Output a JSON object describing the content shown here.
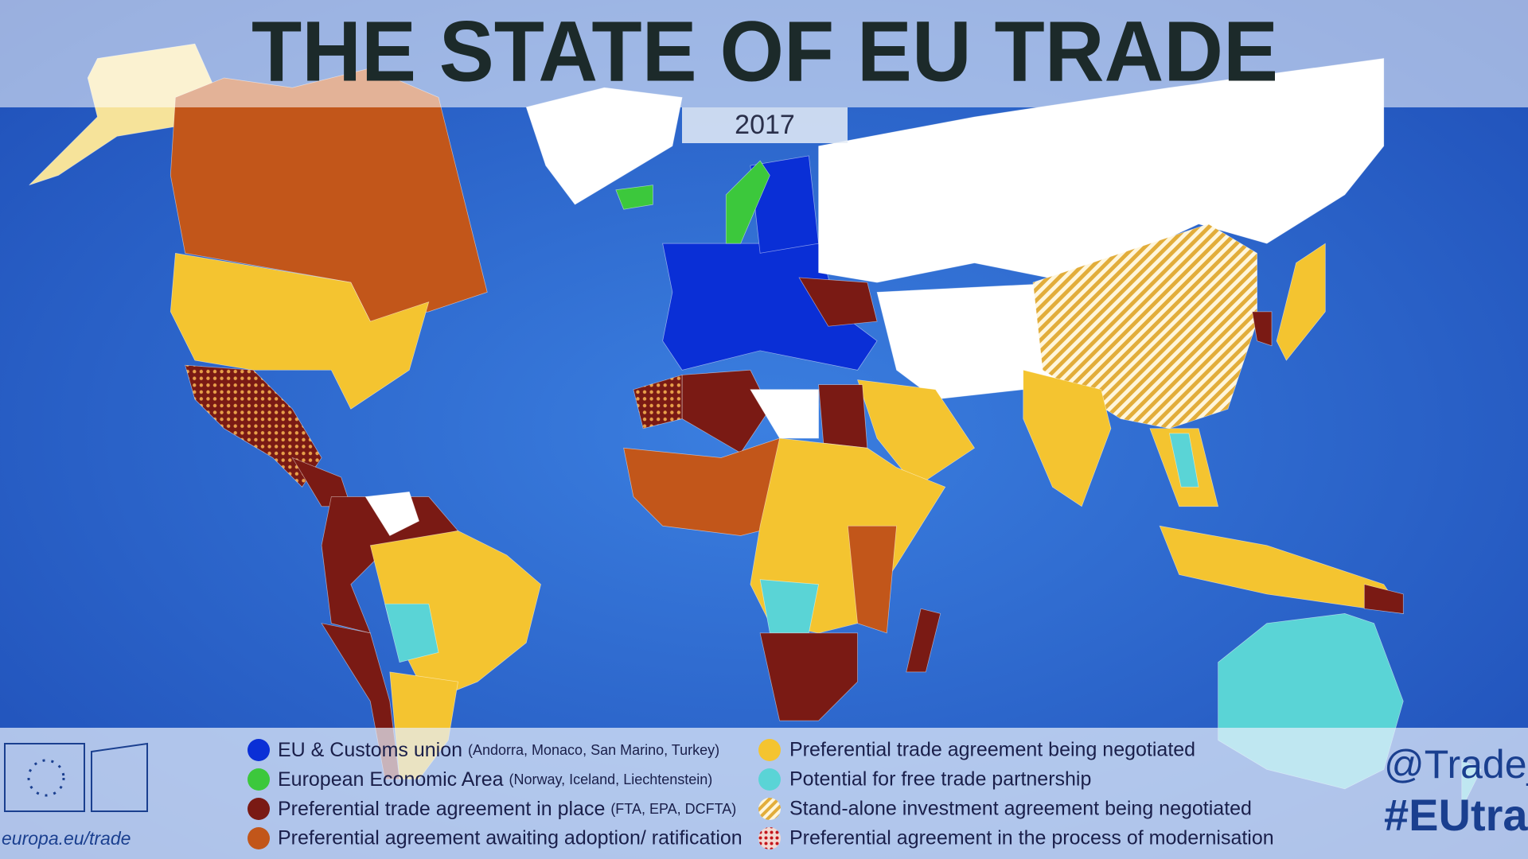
{
  "header": {
    "title": "THE STATE OF EU TRADE",
    "year": "2017"
  },
  "legend": {
    "items": [
      {
        "label": "EU & Customs union",
        "note": "(Andorra, Monaco, San Marino, Turkey)"
      },
      {
        "label": "European Economic Area",
        "note": "(Norway, Iceland, Liechtenstein)"
      },
      {
        "label": "Preferential trade agreement in place",
        "note": "(FTA, EPA, DCFTA)"
      },
      {
        "label": "Preferential agreement awaiting adoption/ ratification"
      },
      {
        "label": "Preferential trade agreement being negotiated"
      },
      {
        "label": "Potential for free trade partnership"
      },
      {
        "label": "Stand-alone investment agreement being negotiated"
      },
      {
        "label": "Preferential agreement in the process of modernisation"
      }
    ]
  },
  "footer": {
    "url": "europa.eu/trade",
    "handle": "@Trade_",
    "hashtag": "#EUtrad"
  }
}
